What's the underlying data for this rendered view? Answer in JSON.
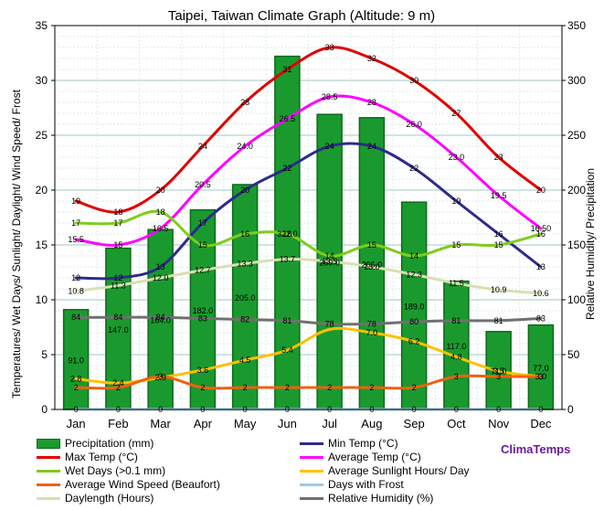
{
  "chart_data": {
    "type": "bar+line",
    "title": "Taipei, Taiwan Climate Graph (Altitude: 9 m)",
    "ylabel_left": "Temperatures/ Wet Days/ Sunlight/ Daylight/ Wind Speed/ Frost",
    "ylabel_right": "Relative Humidity/ Precipitation",
    "ylim_left": [
      0,
      35
    ],
    "ylim_right": [
      0,
      350
    ],
    "yticks_left": [
      "0",
      "5",
      "10",
      "15",
      "20",
      "25",
      "30",
      "35"
    ],
    "yticks_right": [
      "0",
      "50",
      "100",
      "150",
      "200",
      "250",
      "300",
      "350"
    ],
    "categories": [
      "Jan",
      "Feb",
      "Mar",
      "Apr",
      "May",
      "Jun",
      "Jul",
      "Aug",
      "Sep",
      "Oct",
      "Nov",
      "Dec"
    ],
    "grid": true,
    "legend_position": "bottom",
    "brand": "ClimaTemps",
    "bar_series": {
      "name": "Precipitation (mm)",
      "axis": "right",
      "color": "#1a9a2e",
      "values": [
        91.0,
        147.0,
        164.0,
        182.0,
        205.0,
        322.0,
        269.0,
        266.0,
        189.0,
        117.0,
        71.0,
        77.0
      ],
      "labels": [
        "91.0",
        "147.0",
        "164.0",
        "182.0",
        "205.0",
        "322.0",
        "269.0",
        "266.0",
        "189.0",
        "117.0",
        "71.0",
        "77.0"
      ]
    },
    "line_series": [
      {
        "name": "Max Temp (°C)",
        "axis": "left",
        "color": "#e00000",
        "values": [
          19,
          18,
          20,
          24,
          28,
          31,
          33,
          32,
          30,
          27,
          23,
          20
        ],
        "labels": [
          "19",
          "18",
          "20",
          "24",
          "28",
          "31",
          "33",
          "32",
          "30",
          "27",
          "23",
          "20"
        ]
      },
      {
        "name": "Min Temp (°C)",
        "axis": "left",
        "color": "#2d2a8a",
        "values": [
          12,
          12,
          13,
          17,
          20,
          22,
          24,
          24,
          22,
          19,
          16,
          13
        ],
        "labels": [
          "12",
          "12",
          "13",
          "17",
          "20",
          "22",
          "24",
          "24",
          "22",
          "19",
          "16",
          "13"
        ]
      },
      {
        "name": "Average Temp (°C)",
        "axis": "left",
        "color": "#ff00ff",
        "values": [
          15.5,
          15,
          16.5,
          20.5,
          24.0,
          26.5,
          28.5,
          28,
          26.0,
          23.0,
          19.5,
          16.5
        ],
        "labels": [
          "15.5",
          "15",
          "16.5",
          "20.5",
          "24.0",
          "26.5",
          "28.5",
          "28",
          "26.0",
          "23.0",
          "19.5",
          "16.50"
        ]
      },
      {
        "name": "Wet Days (>0.1 mm)",
        "axis": "left",
        "color": "#7fcc1c",
        "values": [
          17,
          17,
          18,
          15,
          16,
          16,
          14,
          15,
          14,
          15,
          15,
          16
        ],
        "labels": [
          "17",
          "17",
          "18",
          "15",
          "16",
          "16",
          "14",
          "15",
          "14",
          "15",
          "15",
          "16"
        ]
      },
      {
        "name": "Average Sunlight Hours/ Day",
        "axis": "left",
        "color": "#ffc000",
        "values": [
          2.8,
          2.4,
          2.9,
          3.6,
          4.5,
          5.4,
          7.3,
          7.0,
          6.2,
          4.8,
          3.5,
          3.0
        ],
        "labels": [
          "2.8",
          "2.4",
          "2.9",
          "3.6",
          "4.5",
          "5.4",
          "",
          "7.0",
          "6.2",
          "4.8",
          "3.5",
          "3.0"
        ]
      },
      {
        "name": "Average Wind Speed (Beaufort)",
        "axis": "left",
        "color": "#f06010",
        "values": [
          2,
          2,
          3,
          2,
          2,
          2,
          2,
          2,
          2,
          3,
          3,
          3
        ],
        "labels": [
          "2",
          "2",
          "3",
          "2",
          "2",
          "2",
          "2",
          "2",
          "2",
          "3",
          "3",
          "3"
        ]
      },
      {
        "name": "Days with Frost",
        "axis": "left",
        "color": "#9ecae1",
        "values": [
          0,
          0,
          0,
          0,
          0,
          0,
          0,
          0,
          0,
          0,
          0,
          0
        ],
        "labels": [
          "0",
          "0",
          "0",
          "0",
          "0",
          "0",
          "0",
          "0",
          "0",
          "0",
          "0",
          "0"
        ]
      },
      {
        "name": "Daylength (Hours)",
        "axis": "left",
        "color": "#d8e0b0",
        "values": [
          10.8,
          11.3,
          12.0,
          12.7,
          13.3,
          13.7,
          13.5,
          13.0,
          12.3,
          11.5,
          10.9,
          10.6
        ],
        "labels": [
          "10.8",
          "11.3",
          "12.0",
          "12.7",
          "13.3",
          "13.7",
          "13.5",
          "13.0",
          "12.3",
          "11.5",
          "10.9",
          "10.6"
        ]
      },
      {
        "name": "Relative Humidity (%)",
        "axis": "right",
        "color": "#707070",
        "values": [
          84,
          84,
          84,
          83,
          82,
          81,
          78,
          78,
          80,
          81,
          81,
          83
        ],
        "labels": [
          "84",
          "84",
          "84",
          "83",
          "82",
          "81",
          "78",
          "78",
          "80",
          "81",
          "81",
          "83"
        ]
      }
    ]
  }
}
